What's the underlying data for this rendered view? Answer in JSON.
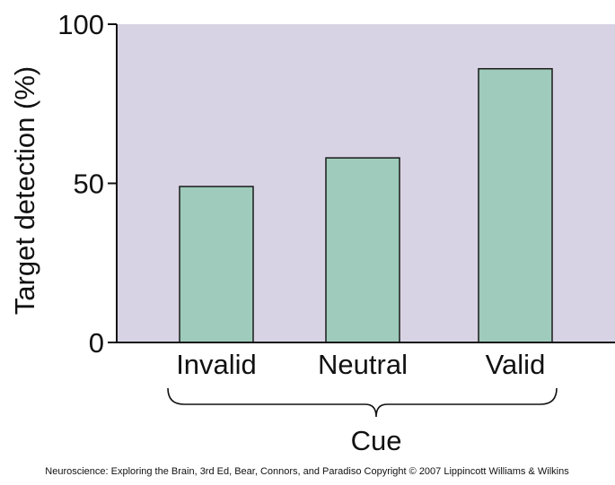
{
  "chart_data": {
    "type": "bar",
    "categories": [
      "Invalid",
      "Neutral",
      "Valid"
    ],
    "values": [
      49,
      58,
      86
    ],
    "ylabel": "Target detection (%)",
    "xlabel": "Cue",
    "ylim": [
      0,
      100
    ],
    "yticks": [
      "0",
      "50",
      "100"
    ],
    "grid": false
  },
  "colors": {
    "plot_background": "#d8d3e4",
    "bar_fill": "#9ecbbc",
    "bar_stroke": "#1a1a1a",
    "axis": "#111111"
  },
  "credit": "Neuroscience: Exploring the Brain, 3rd Ed, Bear, Connors, and Paradiso Copyright © 2007 Lippincott Williams & Wilkins"
}
